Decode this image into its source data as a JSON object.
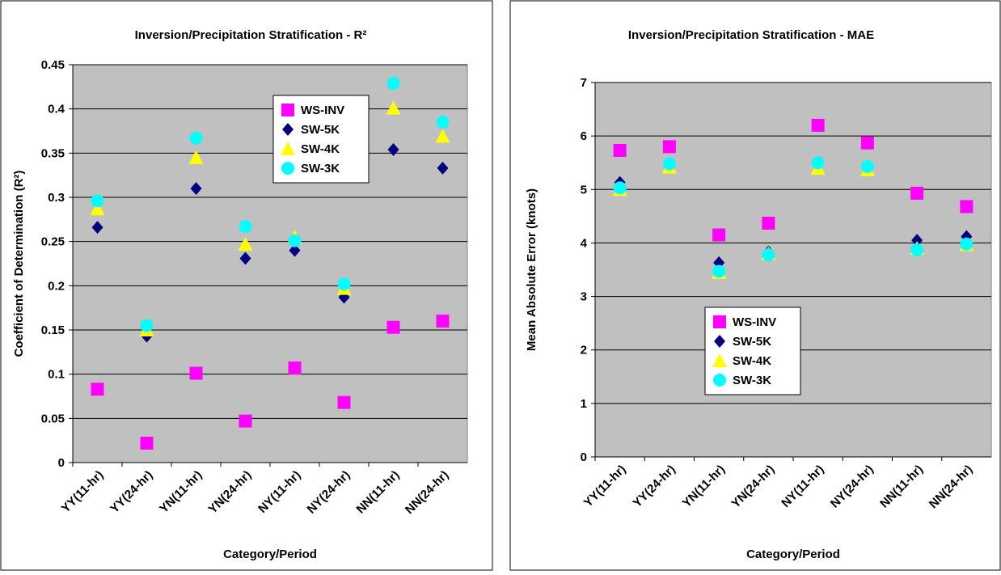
{
  "chart_data": [
    {
      "type": "scatter",
      "title": "Inversion/Precipitation Stratification - R²",
      "x_label": "Category/Period",
      "y_label": "Coefficient of Determination (R²)",
      "categories": [
        "YY(11-hr)",
        "YY(24-hr)",
        "YN(11-hr)",
        "YN(24-hr)",
        "NY(11-hr)",
        "NY(24-hr)",
        "NN(11-hr)",
        "NN(24-hr)"
      ],
      "ylim": [
        0,
        0.45
      ],
      "yticks": [
        0,
        0.05,
        0.1,
        0.15,
        0.2,
        0.25,
        0.3,
        0.35,
        0.4,
        0.45
      ],
      "grid": true,
      "legend_position": "upper right",
      "series": [
        {
          "name": "WS-INV",
          "color": "#ff00ff",
          "marker": "square",
          "values": [
            0.083,
            0.022,
            0.101,
            0.047,
            0.107,
            0.068,
            0.153,
            0.16
          ]
        },
        {
          "name": "SW-5K",
          "color": "#000080",
          "marker": "diamond",
          "values": [
            0.266,
            0.143,
            0.31,
            0.231,
            0.24,
            0.187,
            0.354,
            0.333
          ]
        },
        {
          "name": "SW-4K",
          "color": "#ffff00",
          "marker": "triangle",
          "values": [
            0.287,
            0.15,
            0.345,
            0.247,
            0.255,
            0.197,
            0.401,
            0.369
          ]
        },
        {
          "name": "SW-3K",
          "color": "#00ffff",
          "marker": "circle",
          "values": [
            0.296,
            0.155,
            0.367,
            0.267,
            0.251,
            0.202,
            0.429,
            0.385
          ]
        }
      ]
    },
    {
      "type": "scatter",
      "title": "Inversion/Precipitation Stratification - MAE",
      "x_label": "Category/Period",
      "y_label": "Mean Absolute Error (knots)",
      "categories": [
        "YY(11-hr)",
        "YY(24-hr)",
        "YN(11-hr)",
        "YN(24-hr)",
        "NY(11-hr)",
        "NY(24-hr)",
        "NN(11-hr)",
        "NN(24-hr)"
      ],
      "ylim": [
        0,
        7
      ],
      "yticks": [
        0,
        1,
        2,
        3,
        4,
        5,
        6,
        7
      ],
      "grid": true,
      "legend_position": "lower center",
      "series": [
        {
          "name": "WS-INV",
          "color": "#ff00ff",
          "marker": "square",
          "values": [
            5.73,
            5.8,
            4.15,
            4.37,
            6.2,
            5.87,
            4.93,
            4.68
          ]
        },
        {
          "name": "SW-5K",
          "color": "#000080",
          "marker": "diamond",
          "values": [
            5.13,
            5.48,
            3.63,
            3.83,
            5.47,
            5.4,
            4.05,
            4.12
          ]
        },
        {
          "name": "SW-4K",
          "color": "#ffff00",
          "marker": "triangle",
          "values": [
            5.0,
            5.42,
            3.45,
            3.8,
            5.4,
            5.37,
            3.9,
            3.97
          ]
        },
        {
          "name": "SW-3K",
          "color": "#00ffff",
          "marker": "circle",
          "values": [
            5.03,
            5.48,
            3.47,
            3.78,
            5.5,
            5.43,
            3.87,
            3.98
          ]
        }
      ]
    }
  ]
}
